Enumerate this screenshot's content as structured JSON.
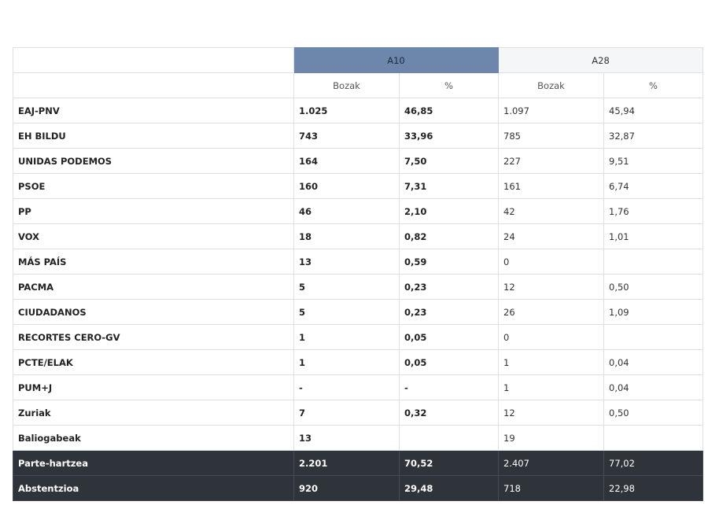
{
  "header": {
    "elections": [
      "A10",
      "A28"
    ],
    "sub_headers": [
      "Bozak",
      "%",
      "Bozak",
      "%"
    ]
  },
  "rows": [
    {
      "party": "EAJ-PNV",
      "a10_votes": "1.025",
      "a10_pct": "46,85",
      "a28_votes": "1.097",
      "a28_pct": "45,94"
    },
    {
      "party": "EH BILDU",
      "a10_votes": "743",
      "a10_pct": "33,96",
      "a28_votes": "785",
      "a28_pct": "32,87"
    },
    {
      "party": "UNIDAS PODEMOS",
      "a10_votes": "164",
      "a10_pct": "7,50",
      "a28_votes": "227",
      "a28_pct": "9,51"
    },
    {
      "party": "PSOE",
      "a10_votes": "160",
      "a10_pct": "7,31",
      "a28_votes": "161",
      "a28_pct": "6,74"
    },
    {
      "party": "PP",
      "a10_votes": "46",
      "a10_pct": "2,10",
      "a28_votes": "42",
      "a28_pct": "1,76"
    },
    {
      "party": "VOX",
      "a10_votes": "18",
      "a10_pct": "0,82",
      "a28_votes": "24",
      "a28_pct": "1,01"
    },
    {
      "party": "MÁS PAÍS",
      "a10_votes": "13",
      "a10_pct": "0,59",
      "a28_votes": "0",
      "a28_pct": ""
    },
    {
      "party": "PACMA",
      "a10_votes": "5",
      "a10_pct": "0,23",
      "a28_votes": "12",
      "a28_pct": "0,50"
    },
    {
      "party": "CIUDADANOS",
      "a10_votes": "5",
      "a10_pct": "0,23",
      "a28_votes": "26",
      "a28_pct": "1,09"
    },
    {
      "party": "RECORTES CERO-GV",
      "a10_votes": "1",
      "a10_pct": "0,05",
      "a28_votes": "0",
      "a28_pct": ""
    },
    {
      "party": "PCTE/ELAK",
      "a10_votes": "1",
      "a10_pct": "0,05",
      "a28_votes": "1",
      "a28_pct": "0,04"
    },
    {
      "party": "PUM+J",
      "a10_votes": "-",
      "a10_pct": "-",
      "a28_votes": "1",
      "a28_pct": "0,04"
    },
    {
      "party": "Zuriak",
      "a10_votes": "7",
      "a10_pct": "0,32",
      "a28_votes": "12",
      "a28_pct": "0,50"
    },
    {
      "party": "Baliogabeak",
      "a10_votes": "13",
      "a10_pct": "",
      "a28_votes": "19",
      "a28_pct": ""
    }
  ],
  "summary_rows": [
    {
      "party": "Parte-hartzea",
      "a10_votes": "2.201",
      "a10_pct": "70,52",
      "a28_votes": "2.407",
      "a28_pct": "77,02"
    },
    {
      "party": "Abstentzioa",
      "a10_votes": "920",
      "a10_pct": "29,48",
      "a28_votes": "718",
      "a28_pct": "22,98"
    }
  ],
  "colors": {
    "a10_header": "#6d86ab",
    "summary_row": "#2f333a",
    "border": "#dcdfe3"
  }
}
